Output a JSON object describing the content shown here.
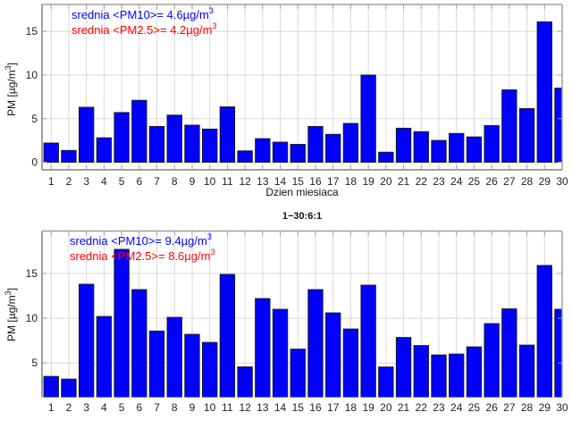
{
  "colors": {
    "bar": "#0000ff",
    "bar_edge": "#1a1a2e",
    "grid": "#d8d8d8",
    "axis": "#a0a0a0",
    "pm10_text": "#0000ff",
    "pm25_text": "#ff0000"
  },
  "chart_data": [
    {
      "type": "bar",
      "title": "",
      "xlabel": "Dzien miesiaca",
      "ylabel": "PM [µg/m³]",
      "ylabel_main": "PM [µg/m",
      "ylabel_sup": "3",
      "ylabel_end": "]",
      "categories": [
        "1",
        "2",
        "3",
        "4",
        "5",
        "6",
        "7",
        "8",
        "9",
        "10",
        "11",
        "12",
        "13",
        "14",
        "15",
        "16",
        "17",
        "18",
        "19",
        "20",
        "21",
        "22",
        "23",
        "24",
        "25",
        "26",
        "27",
        "28",
        "29",
        "30"
      ],
      "values": [
        2.2,
        1.35,
        6.3,
        2.8,
        5.7,
        7.1,
        4.1,
        5.4,
        4.25,
        3.8,
        6.35,
        1.3,
        2.7,
        2.3,
        2.05,
        4.1,
        3.2,
        4.45,
        10.0,
        1.15,
        3.9,
        3.5,
        2.5,
        3.3,
        2.9,
        4.2,
        8.3,
        6.15,
        16.1,
        8.5
      ],
      "yticks": [
        0,
        5,
        10,
        15
      ],
      "ylim": [
        -0.87,
        18.1
      ],
      "xlim": [
        0.48,
        30.0
      ],
      "grid": true,
      "annotations": [
        {
          "main": "srednia <PM10>= 4.6µg/m",
          "sup": "3",
          "series": "PM10"
        },
        {
          "main": "srednia <PM2.5>= 4.2µg/m",
          "sup": "3",
          "series": "PM2.5"
        }
      ],
      "x_axis_line": true
    },
    {
      "type": "bar",
      "title": "1−30:6:1",
      "xlabel": "",
      "ylabel": "PM [µg/m³]",
      "ylabel_main": "PM [µg/m",
      "ylabel_sup": "3",
      "ylabel_end": "]",
      "categories": [
        "1",
        "2",
        "3",
        "4",
        "5",
        "6",
        "7",
        "8",
        "9",
        "10",
        "11",
        "12",
        "13",
        "14",
        "15",
        "16",
        "17",
        "18",
        "19",
        "20",
        "21",
        "22",
        "23",
        "24",
        "25",
        "26",
        "27",
        "28",
        "29",
        "30"
      ],
      "values": [
        3.5,
        3.2,
        13.8,
        10.2,
        17.7,
        13.2,
        8.57,
        10.1,
        8.2,
        7.3,
        14.9,
        4.57,
        12.2,
        11.0,
        6.55,
        13.2,
        10.6,
        8.8,
        13.7,
        4.55,
        7.85,
        6.95,
        5.9,
        6.0,
        6.8,
        9.4,
        11.05,
        7.0,
        15.9,
        11.0
      ],
      "yticks": [
        5,
        10,
        15
      ],
      "ylim": [
        1.17,
        19.75
      ],
      "xlim": [
        0.48,
        30.0
      ],
      "grid": true,
      "annotations": [
        {
          "main": "srednia <PM10>= 9.4µg/m",
          "sup": "3",
          "series": "PM10"
        },
        {
          "main": "srednia <PM2.5>= 8.6µg/m",
          "sup": "3",
          "series": "PM2.5"
        }
      ],
      "x_axis_line": false
    }
  ]
}
